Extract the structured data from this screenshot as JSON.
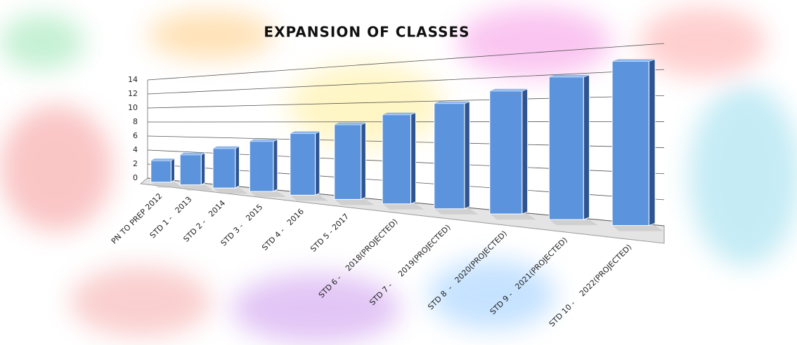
{
  "chart_data": {
    "type": "bar3d",
    "title": "EXPANSION OF CLASSES",
    "categories": [
      "PN TO PREP 2012",
      "STD 1 -   2013",
      "STD 2 -   2014",
      "STD 3 -   2015",
      "STD 4 -   2016",
      "STD 5 - 2017",
      "STD 6 -    2018(PROJECTED)",
      "STD 7 -     2019(PROJECTED)",
      "STD 8  -   2020(PROJECTED)",
      "STD 9 -   2021(PROJECTED)",
      "STD 10 -    2022(PROJECTED)"
    ],
    "values": [
      3,
      4,
      5,
      6,
      7,
      8,
      9,
      10,
      11,
      12,
      13
    ],
    "color": "#5b93dc",
    "ylim": [
      0,
      14
    ],
    "yticks": [
      0,
      2,
      4,
      6,
      8,
      10,
      12,
      14
    ],
    "grid": true
  }
}
